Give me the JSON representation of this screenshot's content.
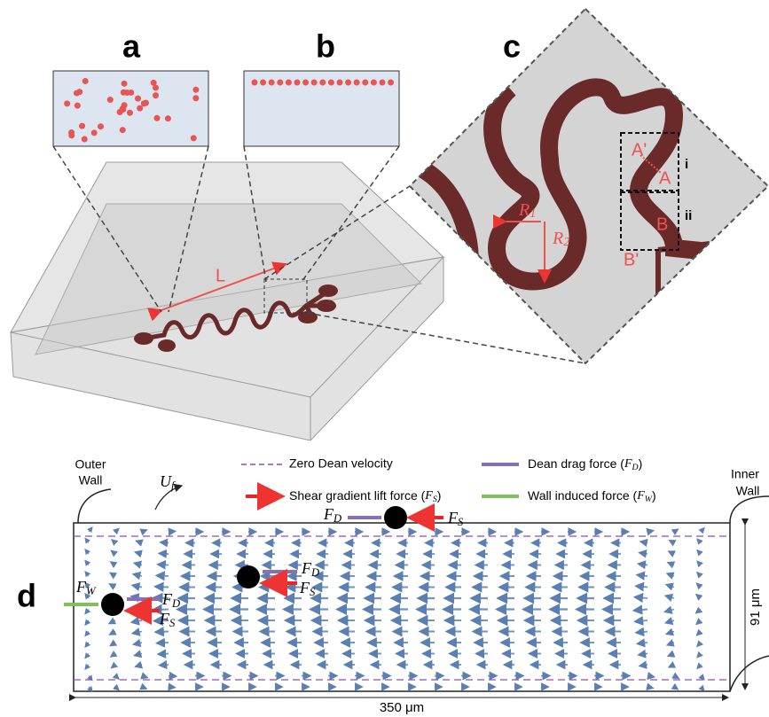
{
  "panels": {
    "a": {
      "label": "a"
    },
    "b": {
      "label": "b"
    },
    "c": {
      "label": "c",
      "marker_a_prime": "A'",
      "marker_a": "A",
      "box_i": "i",
      "marker_b": "B",
      "box_ii": "ii",
      "marker_b_prime": "B'",
      "r1": {
        "symbol": "R",
        "subscript": "1"
      },
      "r2": {
        "symbol": "R",
        "subscript": "2"
      }
    },
    "d": {
      "label": "d"
    }
  },
  "chip": {
    "length_label": "L"
  },
  "legend": {
    "zero_dean": "Zero Dean velocity",
    "dean_drag": {
      "text": "Dean drag force (",
      "symbol": "F",
      "subscript": "D",
      "close": ")"
    },
    "shear_lift": {
      "text": "Shear gradient lift force (",
      "symbol": "F",
      "subscript": "S",
      "close": ")"
    },
    "wall_force": {
      "text": "Wall induced force (",
      "symbol": "F",
      "subscript": "W",
      "close": ")"
    }
  },
  "channel": {
    "outer_wall": [
      "Outer",
      "Wall"
    ],
    "inner_wall": [
      "Inner",
      "Wall"
    ],
    "flow": {
      "symbol": "U",
      "subscript": "f"
    },
    "height_label": "91 μm",
    "width_label": "350 μm"
  },
  "forces": {
    "p1": {
      "drag": {
        "symbol": "F",
        "subscript": "D"
      },
      "lift": {
        "symbol": "F",
        "subscript": "S"
      }
    },
    "p2": {
      "drag": {
        "symbol": "F",
        "subscript": "D"
      },
      "lift": {
        "symbol": "F",
        "subscript": "S"
      }
    },
    "p3": {
      "wall": {
        "symbol": "F",
        "subscript": "W"
      },
      "drag": {
        "symbol": "F",
        "subscript": "D"
      },
      "lift": {
        "symbol": "F",
        "subscript": "S"
      }
    }
  }
}
